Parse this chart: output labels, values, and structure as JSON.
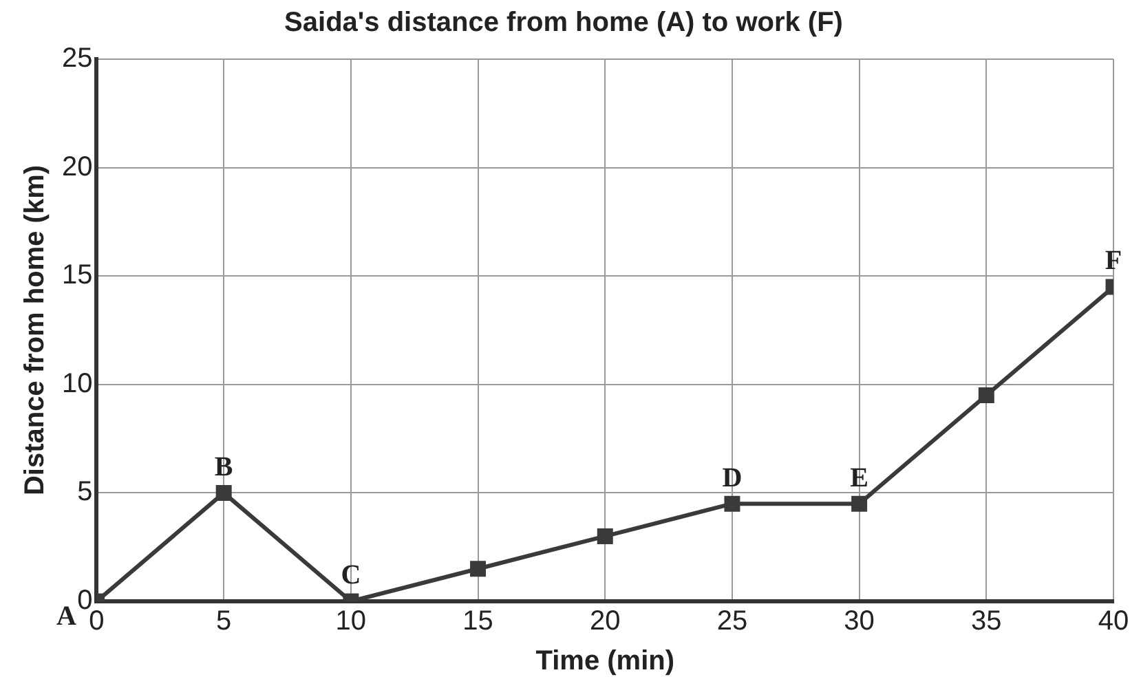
{
  "chart_data": {
    "type": "line",
    "title": "Saida's distance from home (A) to work (F)",
    "xlabel": "Time (min)",
    "ylabel": "Distance from home (km)",
    "x": [
      0,
      5,
      10,
      15,
      20,
      25,
      30,
      35,
      40
    ],
    "series": [
      {
        "color": "#3a3a3a",
        "values": [
          0,
          5,
          0,
          1.5,
          3,
          4.5,
          4.5,
          9.5,
          14.5
        ]
      }
    ],
    "xlim": [
      0,
      40
    ],
    "xticks": [
      0,
      5,
      10,
      15,
      20,
      25,
      30,
      35,
      40
    ],
    "ylim": [
      0,
      25
    ],
    "yticks": [
      0,
      5,
      10,
      15,
      20,
      25
    ],
    "grid": true,
    "legend": false,
    "marker": "square",
    "line_style": "solid",
    "annotations": [
      {
        "text": "A",
        "x": 0,
        "y": 0
      },
      {
        "text": "B",
        "x": 5,
        "y": 5
      },
      {
        "text": "C",
        "x": 10,
        "y": 0
      },
      {
        "text": "D",
        "x": 25,
        "y": 4.5
      },
      {
        "text": "E",
        "x": 30,
        "y": 4.5
      },
      {
        "text": "F",
        "x": 40,
        "y": 14.5
      }
    ]
  }
}
